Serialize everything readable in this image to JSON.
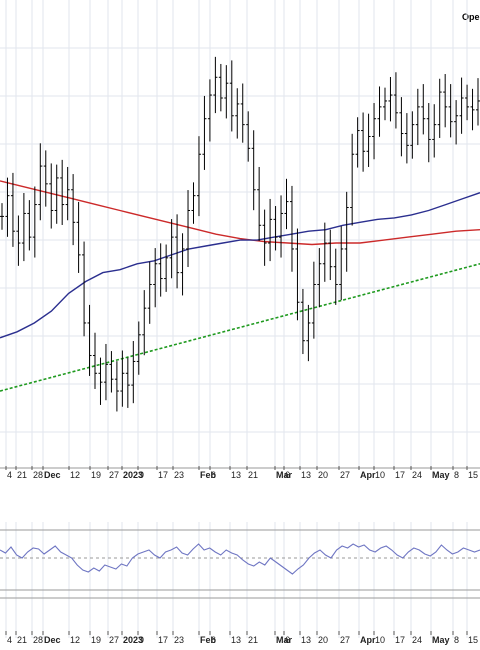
{
  "header": {
    "open_label": "Ope"
  },
  "colors": {
    "ma_short": "#2b2f8f",
    "ma_long": "#cc2a2a",
    "trendline": "#1f9a1f",
    "bars": "#000000",
    "grid": "#e2e6ee",
    "osc_line": "#6f76c3"
  },
  "chart_data": [
    {
      "type": "ohlc-bar",
      "x_axis_labels": [
        {
          "text": "4",
          "bold": false
        },
        {
          "text": "21",
          "bold": false
        },
        {
          "text": "28",
          "bold": false
        },
        {
          "text": "Dec",
          "bold": true
        },
        {
          "text": "12",
          "bold": false
        },
        {
          "text": "19",
          "bold": false
        },
        {
          "text": "27",
          "bold": false
        },
        {
          "text": "2023",
          "bold": true
        },
        {
          "text": "9",
          "bold": false
        },
        {
          "text": "17",
          "bold": false
        },
        {
          "text": "23",
          "bold": false
        },
        {
          "text": "Feb",
          "bold": true
        },
        {
          "text": "6",
          "bold": false
        },
        {
          "text": "13",
          "bold": false
        },
        {
          "text": "21",
          "bold": false
        },
        {
          "text": "Mar",
          "bold": true
        },
        {
          "text": "6",
          "bold": false
        },
        {
          "text": "13",
          "bold": false
        },
        {
          "text": "20",
          "bold": false
        },
        {
          "text": "27",
          "bold": false
        },
        {
          "text": "Apr",
          "bold": true
        },
        {
          "text": "10",
          "bold": false
        },
        {
          "text": "17",
          "bold": false
        },
        {
          "text": "24",
          "bold": false
        },
        {
          "text": "May",
          "bold": true
        },
        {
          "text": "8",
          "bold": false
        },
        {
          "text": "15",
          "bold": false
        }
      ],
      "series": [
        {
          "kind": "price-bars",
          "closes": [
            51.5,
            52.2,
            51.0,
            50.6,
            51.6,
            50.8,
            51.9,
            53.2,
            52.6,
            51.7,
            52.8,
            51.9,
            52.4,
            51.3,
            50.2,
            47.9,
            46.8,
            46.2,
            45.9,
            46.5,
            46.0,
            45.6,
            46.2,
            45.8,
            46.6,
            47.5,
            48.4,
            49.2,
            49.9,
            49.4,
            50.1,
            50.8,
            49.6,
            50.4,
            51.7,
            52.2,
            53.6,
            54.8,
            55.6,
            56.2,
            55.5,
            56.0,
            54.9,
            55.3,
            54.6,
            53.8,
            52.4,
            51.2,
            50.6,
            51.4,
            50.8,
            51.6,
            52.0,
            50.4,
            48.6,
            47.3,
            47.9,
            49.2,
            49.9,
            50.6,
            49.8,
            49.2,
            50.4,
            51.8,
            53.6,
            54.4,
            53.7,
            54.2,
            54.8,
            55.2,
            55.4,
            55.6,
            55.0,
            54.3,
            53.9,
            54.6,
            55.2,
            54.8,
            54.1,
            54.6,
            55.7,
            55.2,
            54.7,
            54.9,
            55.5,
            55.2,
            55.1,
            55.4
          ]
        },
        {
          "kind": "moving-average-short",
          "values": [
            47.4,
            47.6,
            47.9,
            48.3,
            48.9,
            49.3,
            49.6,
            49.7,
            49.9,
            50.0,
            50.2,
            50.4,
            50.5,
            50.6,
            50.7,
            50.7,
            50.8,
            50.9,
            51.0,
            51.05,
            51.2,
            51.3,
            51.4,
            51.45,
            51.55,
            51.7,
            51.9,
            52.1,
            52.3
          ]
        },
        {
          "kind": "moving-average-long",
          "values": [
            52.7,
            52.5,
            52.3,
            52.1,
            51.9,
            51.7,
            51.5,
            51.3,
            51.1,
            50.9,
            50.75,
            50.65,
            50.6,
            50.55,
            50.6,
            50.6,
            50.7,
            50.8,
            50.9,
            51.0,
            51.05
          ]
        },
        {
          "kind": "trendline",
          "values": [
            45.6,
            49.9
          ]
        }
      ]
    },
    {
      "type": "line",
      "panel": "oscillator",
      "x_axis_labels": [
        {
          "text": "4",
          "bold": false
        },
        {
          "text": "21",
          "bold": false
        },
        {
          "text": "28",
          "bold": false
        },
        {
          "text": "Dec",
          "bold": true
        },
        {
          "text": "12",
          "bold": false
        },
        {
          "text": "19",
          "bold": false
        },
        {
          "text": "27",
          "bold": false
        },
        {
          "text": "2023",
          "bold": true
        },
        {
          "text": "9",
          "bold": false
        },
        {
          "text": "17",
          "bold": false
        },
        {
          "text": "23",
          "bold": false
        },
        {
          "text": "Feb",
          "bold": true
        },
        {
          "text": "6",
          "bold": false
        },
        {
          "text": "13",
          "bold": false
        },
        {
          "text": "21",
          "bold": false
        },
        {
          "text": "Mar",
          "bold": true
        },
        {
          "text": "6",
          "bold": false
        },
        {
          "text": "13",
          "bold": false
        },
        {
          "text": "20",
          "bold": false
        },
        {
          "text": "27",
          "bold": false
        },
        {
          "text": "Apr",
          "bold": true
        },
        {
          "text": "10",
          "bold": false
        },
        {
          "text": "17",
          "bold": false
        },
        {
          "text": "24",
          "bold": false
        },
        {
          "text": "May",
          "bold": true
        },
        {
          "text": "8",
          "bold": false
        },
        {
          "text": "15",
          "bold": false
        }
      ],
      "series": [
        {
          "kind": "oscillator",
          "values": [
            60,
            57,
            63,
            55,
            52,
            58,
            62,
            61,
            56,
            60,
            64,
            58,
            55,
            52,
            45,
            40,
            38,
            42,
            39,
            45,
            43,
            41,
            46,
            44,
            52,
            56,
            58,
            60,
            55,
            52,
            58,
            60,
            63,
            57,
            55,
            61,
            66,
            60,
            62,
            58,
            55,
            60,
            57,
            55,
            50,
            46,
            44,
            48,
            45,
            52,
            48,
            44,
            40,
            36,
            41,
            45,
            52,
            57,
            60,
            55,
            52,
            60,
            64,
            62,
            66,
            63,
            65,
            60,
            58,
            62,
            64,
            60,
            55,
            52,
            58,
            62,
            60,
            56,
            54,
            58,
            65,
            60,
            56,
            58,
            62,
            60,
            58,
            60
          ]
        }
      ]
    }
  ]
}
